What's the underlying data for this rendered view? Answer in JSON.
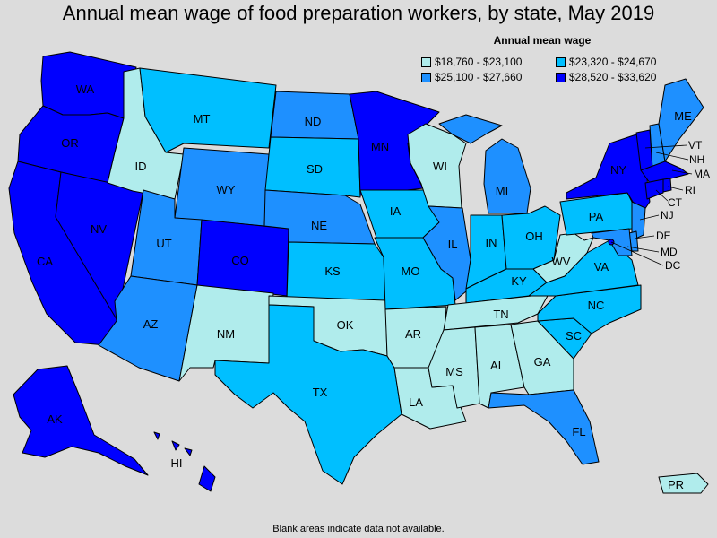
{
  "title": "Annual mean wage of food preparation workers, by state, May 2019",
  "legend": {
    "title": "Annual mean wage",
    "items": [
      {
        "range": "$18,760 - $23,100",
        "color": "#b0ecec"
      },
      {
        "range": "$23,320 - $24,670",
        "color": "#00bfff"
      },
      {
        "range": "$25,100 - $27,660",
        "color": "#1e90ff"
      },
      {
        "range": "$28,520 - $33,620",
        "color": "#0000ff"
      }
    ]
  },
  "footnote": "Blank areas indicate data not available.",
  "states": {
    "WA": {
      "label": "WA",
      "bin": 3
    },
    "OR": {
      "label": "OR",
      "bin": 3
    },
    "CA": {
      "label": "CA",
      "bin": 3
    },
    "NV": {
      "label": "NV",
      "bin": 3
    },
    "ID": {
      "label": "ID",
      "bin": 0
    },
    "MT": {
      "label": "MT",
      "bin": 1
    },
    "WY": {
      "label": "WY",
      "bin": 2
    },
    "UT": {
      "label": "UT",
      "bin": 2
    },
    "AZ": {
      "label": "AZ",
      "bin": 2
    },
    "CO": {
      "label": "CO",
      "bin": 3
    },
    "NM": {
      "label": "NM",
      "bin": 0
    },
    "ND": {
      "label": "ND",
      "bin": 2
    },
    "SD": {
      "label": "SD",
      "bin": 1
    },
    "NE": {
      "label": "NE",
      "bin": 2
    },
    "KS": {
      "label": "KS",
      "bin": 1
    },
    "OK": {
      "label": "OK",
      "bin": 0
    },
    "TX": {
      "label": "TX",
      "bin": 1
    },
    "MN": {
      "label": "MN",
      "bin": 3
    },
    "IA": {
      "label": "IA",
      "bin": 1
    },
    "MO": {
      "label": "MO",
      "bin": 1
    },
    "AR": {
      "label": "AR",
      "bin": 0
    },
    "LA": {
      "label": "LA",
      "bin": 0
    },
    "WI": {
      "label": "WI",
      "bin": 0
    },
    "IL": {
      "label": "IL",
      "bin": 2
    },
    "MI": {
      "label": "MI",
      "bin": 2
    },
    "IN": {
      "label": "IN",
      "bin": 1
    },
    "OH": {
      "label": "OH",
      "bin": 1
    },
    "KY": {
      "label": "KY",
      "bin": 1
    },
    "TN": {
      "label": "TN",
      "bin": 0
    },
    "MS": {
      "label": "MS",
      "bin": 0
    },
    "AL": {
      "label": "AL",
      "bin": 0
    },
    "GA": {
      "label": "GA",
      "bin": 0
    },
    "FL": {
      "label": "FL",
      "bin": 2
    },
    "SC": {
      "label": "SC",
      "bin": 1
    },
    "NC": {
      "label": "NC",
      "bin": 1
    },
    "VA": {
      "label": "VA",
      "bin": 1
    },
    "WV": {
      "label": "WV",
      "bin": 0
    },
    "PA": {
      "label": "PA",
      "bin": 1
    },
    "NY": {
      "label": "NY",
      "bin": 3
    },
    "ME": {
      "label": "ME",
      "bin": 2
    },
    "VT": {
      "label": "VT",
      "bin": 3
    },
    "NH": {
      "label": "NH",
      "bin": 2
    },
    "MA": {
      "label": "MA",
      "bin": 3
    },
    "RI": {
      "label": "RI",
      "bin": 3
    },
    "CT": {
      "label": "CT",
      "bin": 3
    },
    "NJ": {
      "label": "NJ",
      "bin": 2
    },
    "DE": {
      "label": "DE",
      "bin": 2
    },
    "MD": {
      "label": "MD",
      "bin": 2
    },
    "DC": {
      "label": "DC",
      "bin": 3
    },
    "AK": {
      "label": "AK",
      "bin": 3
    },
    "HI": {
      "label": "HI",
      "bin": 3
    },
    "PR": {
      "label": "PR",
      "bin": 0
    }
  }
}
